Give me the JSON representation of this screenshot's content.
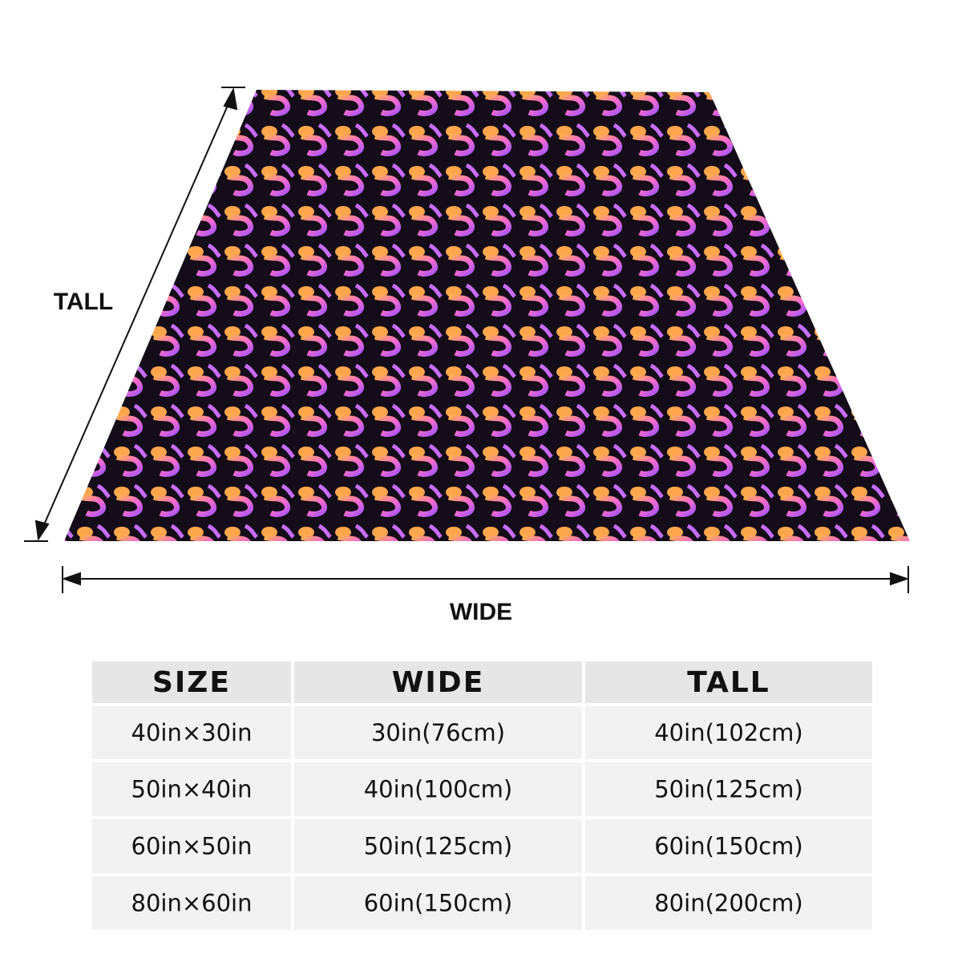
{
  "labels": {
    "tall": "TALL",
    "wide": "WIDE"
  },
  "table": {
    "header": [
      "SIZE",
      "WIDE",
      "TALL"
    ],
    "rows": [
      [
        "40in×30in",
        "30in(76cm)",
        "40in(102cm)"
      ],
      [
        "50in×40in",
        "40in(100cm)",
        "50in(125cm)"
      ],
      [
        "60in×50in",
        "50in(125cm)",
        "60in(150cm)"
      ],
      [
        "80in×60in",
        "60in(150cm)",
        "80in(200cm)"
      ]
    ]
  }
}
